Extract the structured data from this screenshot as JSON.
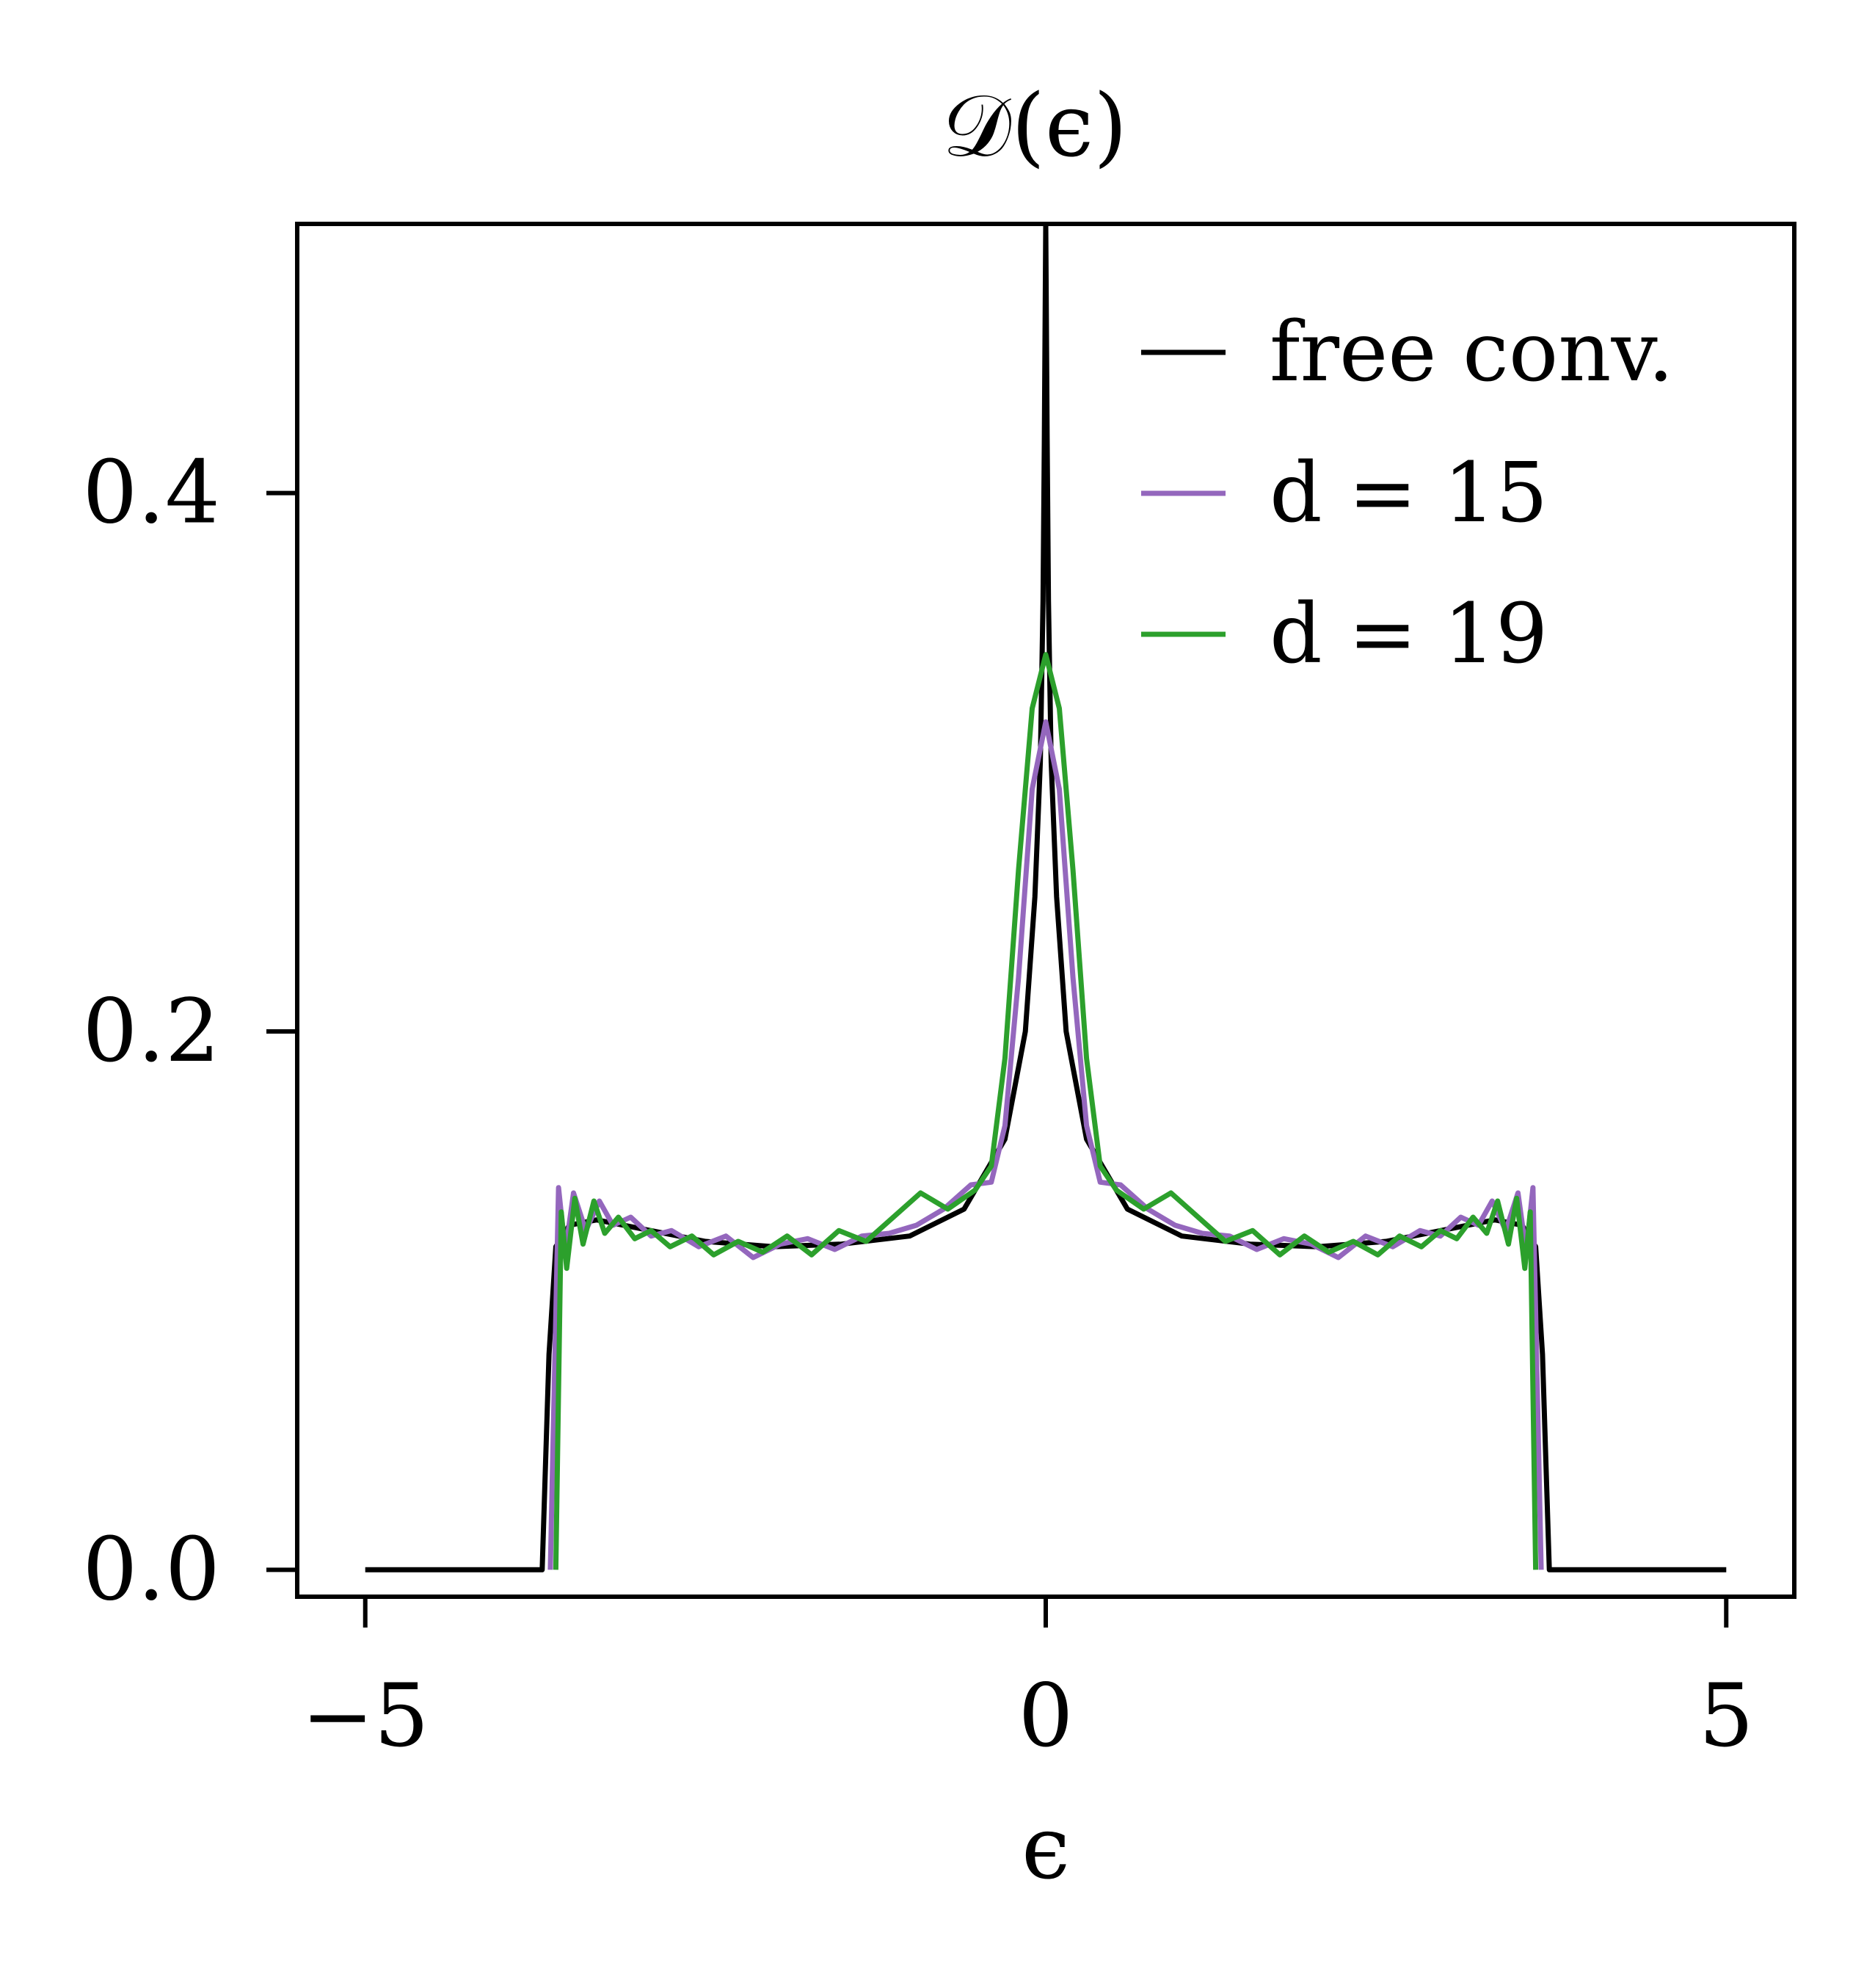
{
  "chart_data": {
    "type": "line",
    "title": "𝒟(ϵ)",
    "xlabel": "ϵ",
    "ylabel": "",
    "xlim": [
      -5.5,
      5.5
    ],
    "ylim": [
      -0.01,
      0.5
    ],
    "xticks": [
      -5,
      0,
      5
    ],
    "xtick_labels": [
      "−5",
      "0",
      "5"
    ],
    "yticks": [
      0.0,
      0.2,
      0.4
    ],
    "ytick_labels": [
      "0.0",
      "0.2",
      "0.4"
    ],
    "grid": false,
    "legend_position": "top-right",
    "series": [
      {
        "name": "free conv.",
        "color": "#000000",
        "x": [
          -5.0,
          -3.7,
          -3.65,
          -3.6,
          -3.5,
          -3.3,
          -3.0,
          -2.5,
          -2.0,
          -1.5,
          -1.0,
          -0.6,
          -0.3,
          -0.15,
          -0.08,
          -0.04,
          -0.02,
          -0.01,
          0.0,
          0.01,
          0.02,
          0.04,
          0.08,
          0.15,
          0.3,
          0.6,
          1.0,
          1.5,
          2.0,
          2.5,
          3.0,
          3.3,
          3.5,
          3.6,
          3.65,
          3.7,
          5.0
        ],
        "y": [
          0.0,
          0.0,
          0.08,
          0.12,
          0.128,
          0.13,
          0.127,
          0.122,
          0.12,
          0.121,
          0.124,
          0.134,
          0.16,
          0.2,
          0.25,
          0.3,
          0.36,
          0.42,
          0.5,
          0.42,
          0.36,
          0.3,
          0.25,
          0.2,
          0.16,
          0.134,
          0.124,
          0.121,
          0.12,
          0.122,
          0.127,
          0.13,
          0.128,
          0.12,
          0.08,
          0.0,
          0.0
        ]
      },
      {
        "name": "d = 15",
        "color": "#9467bd",
        "x": [
          -3.64,
          -3.58,
          -3.53,
          -3.47,
          -3.38,
          -3.28,
          -3.18,
          -3.05,
          -2.9,
          -2.75,
          -2.55,
          -2.35,
          -2.15,
          -1.95,
          -1.75,
          -1.55,
          -1.35,
          -1.15,
          -0.95,
          -0.75,
          -0.55,
          -0.4,
          -0.3,
          -0.2,
          -0.1,
          0.0,
          0.1,
          0.2,
          0.3,
          0.4,
          0.55,
          0.75,
          0.95,
          1.15,
          1.35,
          1.55,
          1.75,
          1.95,
          2.15,
          2.35,
          2.55,
          2.75,
          2.9,
          3.05,
          3.18,
          3.28,
          3.38,
          3.47,
          3.53,
          3.58,
          3.64
        ],
        "y": [
          0.0,
          0.142,
          0.118,
          0.14,
          0.126,
          0.137,
          0.128,
          0.131,
          0.124,
          0.126,
          0.12,
          0.124,
          0.116,
          0.121,
          0.123,
          0.119,
          0.124,
          0.125,
          0.128,
          0.134,
          0.143,
          0.144,
          0.165,
          0.22,
          0.29,
          0.315,
          0.29,
          0.22,
          0.165,
          0.144,
          0.143,
          0.134,
          0.128,
          0.125,
          0.124,
          0.119,
          0.123,
          0.121,
          0.116,
          0.124,
          0.12,
          0.126,
          0.124,
          0.131,
          0.128,
          0.137,
          0.126,
          0.14,
          0.118,
          0.142,
          0.0
        ]
      },
      {
        "name": "d = 19",
        "color": "#2ca02c",
        "x": [
          -3.6,
          -3.56,
          -3.52,
          -3.46,
          -3.4,
          -3.32,
          -3.24,
          -3.14,
          -3.02,
          -2.9,
          -2.76,
          -2.6,
          -2.44,
          -2.26,
          -2.08,
          -1.9,
          -1.72,
          -1.52,
          -1.32,
          -1.12,
          -0.92,
          -0.72,
          -0.52,
          -0.4,
          -0.3,
          -0.2,
          -0.1,
          0.0,
          0.1,
          0.2,
          0.3,
          0.4,
          0.52,
          0.72,
          0.92,
          1.12,
          1.32,
          1.52,
          1.72,
          1.9,
          2.08,
          2.26,
          2.44,
          2.6,
          2.76,
          2.9,
          3.02,
          3.14,
          3.24,
          3.32,
          3.4,
          3.46,
          3.52,
          3.56,
          3.6
        ],
        "y": [
          0.0,
          0.133,
          0.112,
          0.138,
          0.121,
          0.137,
          0.125,
          0.131,
          0.123,
          0.126,
          0.12,
          0.124,
          0.117,
          0.122,
          0.118,
          0.124,
          0.117,
          0.126,
          0.122,
          0.131,
          0.14,
          0.134,
          0.141,
          0.15,
          0.19,
          0.26,
          0.32,
          0.34,
          0.32,
          0.26,
          0.19,
          0.15,
          0.141,
          0.134,
          0.14,
          0.131,
          0.122,
          0.126,
          0.117,
          0.124,
          0.118,
          0.122,
          0.117,
          0.124,
          0.12,
          0.126,
          0.123,
          0.131,
          0.125,
          0.137,
          0.121,
          0.138,
          0.112,
          0.133,
          0.0
        ]
      }
    ]
  }
}
